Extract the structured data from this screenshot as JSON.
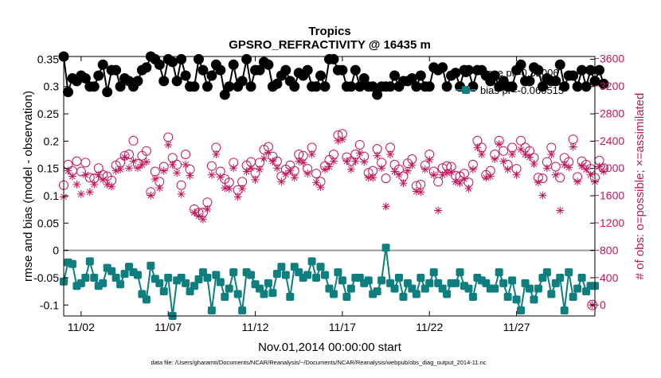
{
  "chart_data": {
    "type": "line",
    "title": "Tropics",
    "subtitle": "GPSRO_REFRACTIVITY @ 16435 m",
    "xlabel": "Nov.01,2014 00:00:00 start",
    "ylabel_left": "rmse and bias (model - observation)",
    "ylabel_right": "# of obs: o=possible; ×=assimilated",
    "footnote": "data file: /Users/gharamti/Documents/NCAR/Reanalysis/~/Documents/NCAR/Reanalysis/webpub/obs_diag_output_2014-11.nc",
    "x_range_days": [
      0,
      30.5
    ],
    "ylim_left": [
      -0.12,
      0.355
    ],
    "ylim_right": [
      -160,
      3630
    ],
    "left_ticks": [
      "-0.1",
      "-0.05",
      "0",
      "0.05",
      "0.1",
      "0.15",
      "0.2",
      "0.25",
      "0.3",
      "0.35"
    ],
    "left_tick_values": [
      -0.1,
      -0.05,
      0,
      0.05,
      0.1,
      0.15,
      0.2,
      0.25,
      0.3,
      0.35
    ],
    "right_ticks": [
      "0",
      "400",
      "800",
      "1200",
      "1600",
      "2000",
      "2400",
      "2800",
      "3200",
      "3600"
    ],
    "right_tick_values": [
      0,
      400,
      800,
      1200,
      1600,
      2000,
      2400,
      2800,
      3200,
      3600
    ],
    "x_tick_labels": [
      "11/02",
      "11/07",
      "11/12",
      "11/17",
      "11/22",
      "11/27"
    ],
    "x_tick_values": [
      1,
      6,
      11,
      16,
      21,
      26
    ],
    "legend": [
      {
        "label": "rmse pr=0.32006",
        "series": "rmse"
      },
      {
        "label": "bias pr=-0.060515",
        "series": "bias"
      }
    ],
    "colors": {
      "rmse": "#000000",
      "bias": "#0e7e7e",
      "obs": "#c1185b",
      "zero_line": "#9a9a9a"
    },
    "series": {
      "rmse": {
        "name": "rmse",
        "step_days": 0.25,
        "start_day": 0.0,
        "values": [
          0.355,
          0.29,
          0.315,
          0.31,
          0.32,
          0.315,
          0.3,
          0.3,
          0.32,
          0.34,
          0.29,
          0.33,
          0.33,
          0.3,
          0.315,
          0.31,
          0.3,
          0.31,
          0.33,
          0.335,
          0.355,
          0.35,
          0.34,
          0.31,
          0.35,
          0.345,
          0.31,
          0.35,
          0.32,
          0.3,
          0.3,
          0.35,
          0.33,
          0.3,
          0.32,
          0.34,
          0.33,
          0.285,
          0.3,
          0.34,
          0.3,
          0.31,
          0.35,
          0.3,
          0.33,
          0.33,
          0.345,
          0.34,
          0.3,
          0.305,
          0.32,
          0.33,
          0.31,
          0.3,
          0.325,
          0.32,
          0.33,
          0.3,
          0.3,
          0.32,
          0.3,
          0.35,
          0.35,
          0.33,
          0.33,
          0.3,
          0.3,
          0.33,
          0.3,
          0.315,
          0.3,
          0.3,
          0.285,
          0.3,
          0.3,
          0.3,
          0.32,
          0.3,
          0.31,
          0.31,
          0.315,
          0.3,
          0.32,
          0.3,
          0.3,
          0.335,
          0.33,
          0.335,
          0.3,
          0.32,
          0.325,
          0.3,
          0.33,
          0.33,
          0.3,
          0.33,
          0.33,
          0.32,
          0.31,
          0.32,
          0.3,
          0.31,
          0.3,
          0.3,
          0.33,
          0.34,
          0.31,
          0.31,
          0.335,
          0.33,
          0.3,
          0.315,
          0.31,
          0.31,
          0.34,
          0.3,
          0.32,
          0.32,
          0.3,
          0.33,
          0.3,
          0.33,
          0.31,
          0.33,
          0.305
        ]
      },
      "bias": {
        "name": "bias",
        "step_days": 0.25,
        "start_day": 0.0,
        "values": [
          -0.057,
          -0.022,
          -0.025,
          -0.065,
          -0.06,
          -0.05,
          -0.02,
          -0.05,
          -0.065,
          -0.06,
          -0.032,
          -0.038,
          -0.05,
          -0.062,
          -0.043,
          -0.03,
          -0.04,
          -0.045,
          -0.08,
          -0.09,
          -0.028,
          -0.052,
          -0.06,
          -0.075,
          -0.05,
          -0.12,
          -0.055,
          -0.05,
          -0.06,
          -0.075,
          -0.065,
          -0.053,
          -0.04,
          -0.05,
          -0.11,
          -0.045,
          -0.058,
          -0.085,
          -0.07,
          -0.04,
          -0.08,
          -0.11,
          -0.04,
          -0.045,
          -0.062,
          -0.07,
          -0.08,
          -0.06,
          -0.078,
          -0.043,
          -0.03,
          -0.045,
          -0.085,
          -0.03,
          -0.04,
          -0.05,
          -0.045,
          -0.02,
          -0.05,
          -0.03,
          -0.045,
          -0.07,
          -0.08,
          -0.04,
          -0.055,
          -0.085,
          -0.07,
          -0.05,
          -0.05,
          -0.06,
          -0.055,
          -0.08,
          -0.075,
          -0.055,
          0.005,
          -0.06,
          -0.07,
          -0.05,
          -0.085,
          -0.06,
          -0.07,
          -0.08,
          -0.05,
          -0.07,
          -0.06,
          -0.04,
          -0.06,
          -0.07,
          -0.08,
          -0.06,
          -0.06,
          -0.04,
          -0.065,
          -0.07,
          -0.085,
          -0.05,
          -0.055,
          -0.06,
          -0.07,
          -0.07,
          -0.04,
          -0.06,
          -0.085,
          -0.055,
          -0.09,
          -0.11,
          -0.06,
          -0.07,
          -0.09,
          -0.07,
          -0.05,
          -0.04,
          -0.08,
          -0.06,
          -0.05,
          -0.11,
          -0.04,
          -0.085,
          -0.07,
          -0.05,
          -0.075,
          -0.065,
          -0.065
        ]
      },
      "possible": {
        "name": "possible",
        "step_days": 0.25,
        "start_day": 0.0,
        "values": [
          1750,
          2050,
          1960,
          2100,
          1950,
          2080,
          1860,
          1850,
          2000,
          1900,
          1880,
          1820,
          2040,
          2080,
          2180,
          2200,
          2400,
          2060,
          2180,
          2250,
          1650,
          1950,
          1800,
          2020,
          2450,
          2150,
          2050,
          1750,
          2200,
          1980,
          1400,
          1350,
          1350,
          1500,
          2030,
          2300,
          1950,
          1840,
          1790,
          2080,
          1680,
          1800,
          2040,
          2090,
          1930,
          2080,
          2270,
          2310,
          2170,
          2100,
          1880,
          1980,
          2040,
          1960,
          2200,
          2180,
          1990,
          2300,
          1920,
          1800,
          2030,
          2120,
          2200,
          2480,
          2500,
          2160,
          2100,
          2200,
          2340,
          2170,
          1930,
          1960,
          2280,
          2080,
          1850,
          2300,
          2050,
          1980,
          1880,
          2070,
          2130,
          1740,
          1760,
          2040,
          2200,
          1950,
          1800,
          2000,
          2030,
          2020,
          1890,
          1880,
          1920,
          1790,
          2050,
          2400,
          2300,
          1900,
          1960,
          2200,
          2400,
          2250,
          2050,
          2300,
          1990,
          2400,
          2300,
          2250,
          2150,
          1860,
          1850,
          2090,
          2300,
          2020,
          1860,
          2150,
          2090,
          2420,
          1870,
          2100,
          2050,
          1990,
          1860,
          2110,
          2000
        ]
      },
      "assimilated": {
        "name": "assimilated",
        "step_days": 0.25,
        "start_day": 0.0,
        "values": [
          1580,
          1960,
          1880,
          1760,
          1620,
          1900,
          1650,
          1760,
          1900,
          1830,
          1760,
          1730,
          1960,
          1980,
          2160,
          2000,
          2100,
          2000,
          2050,
          2090,
          1600,
          1840,
          1710,
          1960,
          2340,
          2050,
          1930,
          1620,
          2050,
          1890,
          1350,
          1300,
          1250,
          1400,
          1900,
          2200,
          1870,
          1710,
          1700,
          2000,
          1580,
          1700,
          1950,
          2000,
          1830,
          1980,
          2140,
          2230,
          2100,
          2000,
          1800,
          1910,
          1960,
          1860,
          2100,
          2080,
          1920,
          2200,
          1790,
          1720,
          1980,
          2020,
          2100,
          2400,
          2420,
          2100,
          1980,
          2100,
          2220,
          2090,
          1860,
          1860,
          2180,
          2000,
          1440,
          2200,
          1950,
          1900,
          1780,
          1960,
          2040,
          1660,
          1650,
          1980,
          2120,
          1900,
          1380,
          1900,
          1930,
          1940,
          1800,
          1780,
          1840,
          1700,
          1980,
          2300,
          2200,
          1860,
          1880,
          2130,
          2350,
          2100,
          1980,
          2200,
          1900,
          2270,
          2200,
          2160,
          2060,
          1790,
          1600,
          2000,
          2200,
          1900,
          1380,
          2050,
          2010,
          2310,
          1800,
          2030,
          1980,
          1900,
          1800,
          2020,
          1950
        ]
      }
    },
    "extra_marker": {
      "label": "final-day obs marker",
      "day": 30.35,
      "value": 0
    }
  }
}
